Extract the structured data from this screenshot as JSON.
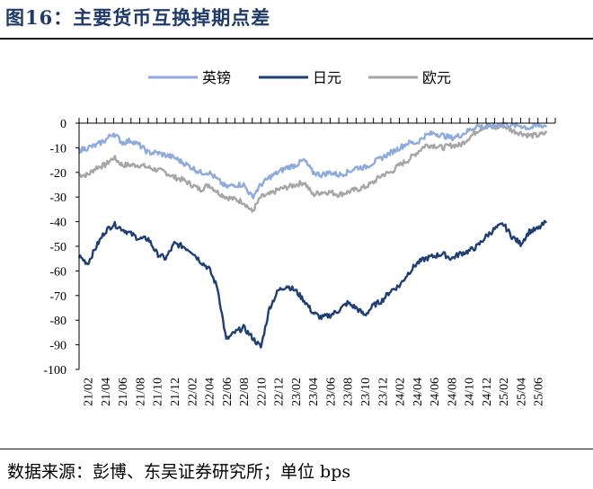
{
  "title": "图16：主要货币互换掉期点差",
  "source": {
    "text": "数据来源：彭博、东吴证券研究所；单位 bps"
  },
  "chart_data": {
    "type": "line",
    "ylim": [
      -100,
      0
    ],
    "yticks": [
      0,
      -10,
      -20,
      -30,
      -40,
      -50,
      -60,
      -70,
      -80,
      -90,
      -100
    ],
    "xticks": [
      "21/02",
      "21/04",
      "21/06",
      "21/08",
      "21/10",
      "21/12",
      "22/02",
      "22/04",
      "22/06",
      "22/08",
      "22/10",
      "22/12",
      "23/02",
      "23/04",
      "23/06",
      "23/08",
      "23/10",
      "23/12",
      "24/02",
      "24/04",
      "24/06",
      "24/08",
      "24/10",
      "24/12",
      "25/02",
      "25/04",
      "25/06"
    ],
    "x_months_note": "",
    "legend_position": "top",
    "series": [
      {
        "name": "英镑",
        "color": "#8faadc",
        "points": [
          [
            "2021-01",
            -11
          ],
          [
            "2021-02",
            -10
          ],
          [
            "2021-03",
            -9
          ],
          [
            "2021-04",
            -7
          ],
          [
            "2021-05",
            -4
          ],
          [
            "2021-06",
            -8
          ],
          [
            "2021-07",
            -7
          ],
          [
            "2021-08",
            -9
          ],
          [
            "2021-09",
            -12
          ],
          [
            "2021-10",
            -12
          ],
          [
            "2021-11",
            -13
          ],
          [
            "2021-12",
            -14
          ],
          [
            "2022-01",
            -16
          ],
          [
            "2022-02",
            -18
          ],
          [
            "2022-03",
            -20
          ],
          [
            "2022-04",
            -20
          ],
          [
            "2022-05",
            -23
          ],
          [
            "2022-06",
            -26
          ],
          [
            "2022-07",
            -25
          ],
          [
            "2022-08",
            -25
          ],
          [
            "2022-09",
            -30
          ],
          [
            "2022-10",
            -25
          ],
          [
            "2022-11",
            -22
          ],
          [
            "2022-12",
            -20
          ],
          [
            "2023-01",
            -18
          ],
          [
            "2023-02",
            -17
          ],
          [
            "2023-03",
            -15
          ],
          [
            "2023-04",
            -20
          ],
          [
            "2023-05",
            -21
          ],
          [
            "2023-06",
            -20
          ],
          [
            "2023-07",
            -21
          ],
          [
            "2023-08",
            -20
          ],
          [
            "2023-09",
            -18
          ],
          [
            "2023-10",
            -18
          ],
          [
            "2023-11",
            -16
          ],
          [
            "2023-12",
            -14
          ],
          [
            "2024-01",
            -12
          ],
          [
            "2024-02",
            -10
          ],
          [
            "2024-03",
            -8
          ],
          [
            "2024-04",
            -8
          ],
          [
            "2024-05",
            -5
          ],
          [
            "2024-06",
            -4
          ],
          [
            "2024-07",
            -5
          ],
          [
            "2024-08",
            -6
          ],
          [
            "2024-09",
            -5
          ],
          [
            "2024-10",
            -3
          ],
          [
            "2024-11",
            -1
          ],
          [
            "2024-12",
            -2
          ],
          [
            "2025-01",
            -1
          ],
          [
            "2025-02",
            0
          ],
          [
            "2025-03",
            -1
          ],
          [
            "2025-04",
            -1
          ],
          [
            "2025-05",
            -2
          ],
          [
            "2025-06",
            -1
          ],
          [
            "2025-07",
            -1
          ]
        ]
      },
      {
        "name": "日元",
        "color": "#1f3f73",
        "points": [
          [
            "2021-01",
            -54
          ],
          [
            "2021-02",
            -57
          ],
          [
            "2021-03",
            -50
          ],
          [
            "2021-04",
            -44
          ],
          [
            "2021-05",
            -41
          ],
          [
            "2021-06",
            -43
          ],
          [
            "2021-07",
            -45
          ],
          [
            "2021-08",
            -47
          ],
          [
            "2021-09",
            -47
          ],
          [
            "2021-10",
            -53
          ],
          [
            "2021-11",
            -55
          ],
          [
            "2021-12",
            -49
          ],
          [
            "2022-01",
            -50
          ],
          [
            "2022-02",
            -52
          ],
          [
            "2022-03",
            -56
          ],
          [
            "2022-04",
            -59
          ],
          [
            "2022-05",
            -67
          ],
          [
            "2022-06",
            -88
          ],
          [
            "2022-07",
            -85
          ],
          [
            "2022-08",
            -83
          ],
          [
            "2022-09",
            -87
          ],
          [
            "2022-10",
            -91
          ],
          [
            "2022-11",
            -75
          ],
          [
            "2022-12",
            -68
          ],
          [
            "2023-01",
            -66
          ],
          [
            "2023-02",
            -68
          ],
          [
            "2023-03",
            -72
          ],
          [
            "2023-04",
            -77
          ],
          [
            "2023-05",
            -79
          ],
          [
            "2023-06",
            -78
          ],
          [
            "2023-07",
            -76
          ],
          [
            "2023-08",
            -73
          ],
          [
            "2023-09",
            -75
          ],
          [
            "2023-10",
            -78
          ],
          [
            "2023-11",
            -74
          ],
          [
            "2023-12",
            -72
          ],
          [
            "2024-01",
            -68
          ],
          [
            "2024-02",
            -66
          ],
          [
            "2024-03",
            -61
          ],
          [
            "2024-04",
            -57
          ],
          [
            "2024-05",
            -55
          ],
          [
            "2024-06",
            -54
          ],
          [
            "2024-07",
            -53
          ],
          [
            "2024-08",
            -55
          ],
          [
            "2024-09",
            -53
          ],
          [
            "2024-10",
            -52
          ],
          [
            "2024-11",
            -50
          ],
          [
            "2024-12",
            -46
          ],
          [
            "2025-01",
            -43
          ],
          [
            "2025-02",
            -41
          ],
          [
            "2025-03",
            -46
          ],
          [
            "2025-04",
            -49
          ],
          [
            "2025-05",
            -44
          ],
          [
            "2025-06",
            -43
          ],
          [
            "2025-07",
            -40
          ]
        ]
      },
      {
        "name": "欧元",
        "color": "#a6a6a6",
        "points": [
          [
            "2021-01",
            -21
          ],
          [
            "2021-02",
            -21
          ],
          [
            "2021-03",
            -18
          ],
          [
            "2021-04",
            -17
          ],
          [
            "2021-05",
            -14
          ],
          [
            "2021-06",
            -17
          ],
          [
            "2021-07",
            -17
          ],
          [
            "2021-08",
            -17
          ],
          [
            "2021-09",
            -18
          ],
          [
            "2021-10",
            -19
          ],
          [
            "2021-11",
            -20
          ],
          [
            "2021-12",
            -22
          ],
          [
            "2022-01",
            -23
          ],
          [
            "2022-02",
            -25
          ],
          [
            "2022-03",
            -27
          ],
          [
            "2022-04",
            -25
          ],
          [
            "2022-05",
            -28
          ],
          [
            "2022-06",
            -30
          ],
          [
            "2022-07",
            -31
          ],
          [
            "2022-08",
            -32
          ],
          [
            "2022-09",
            -36
          ],
          [
            "2022-10",
            -30
          ],
          [
            "2022-11",
            -29
          ],
          [
            "2022-12",
            -27
          ],
          [
            "2023-01",
            -26
          ],
          [
            "2023-02",
            -25
          ],
          [
            "2023-03",
            -24
          ],
          [
            "2023-04",
            -29
          ],
          [
            "2023-05",
            -28
          ],
          [
            "2023-06",
            -28
          ],
          [
            "2023-07",
            -29
          ],
          [
            "2023-08",
            -28
          ],
          [
            "2023-09",
            -27
          ],
          [
            "2023-10",
            -26
          ],
          [
            "2023-11",
            -24
          ],
          [
            "2023-12",
            -21
          ],
          [
            "2024-01",
            -20
          ],
          [
            "2024-02",
            -17
          ],
          [
            "2024-03",
            -15
          ],
          [
            "2024-04",
            -12
          ],
          [
            "2024-05",
            -9
          ],
          [
            "2024-06",
            -9
          ],
          [
            "2024-07",
            -10
          ],
          [
            "2024-08",
            -9
          ],
          [
            "2024-09",
            -9
          ],
          [
            "2024-10",
            -6
          ],
          [
            "2024-11",
            -3
          ],
          [
            "2024-12",
            -1
          ],
          [
            "2025-01",
            -2
          ],
          [
            "2025-02",
            -1
          ],
          [
            "2025-03",
            -3
          ],
          [
            "2025-04",
            -4
          ],
          [
            "2025-05",
            -5
          ],
          [
            "2025-06",
            -5
          ],
          [
            "2025-07",
            -4
          ]
        ]
      }
    ]
  }
}
